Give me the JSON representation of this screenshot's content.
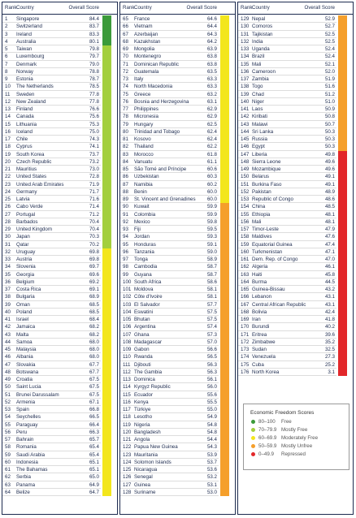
{
  "columns": [
    {
      "header": [
        "Rank",
        "Country",
        "Overall Score"
      ],
      "rows": [
        [
          1,
          "Singapore",
          "84.4"
        ],
        [
          2,
          "Switzerland",
          "83.7"
        ],
        [
          3,
          "Ireland",
          "83.3"
        ],
        [
          4,
          "Australia",
          "80.1"
        ],
        [
          5,
          "Taiwan",
          "79.8"
        ],
        [
          6,
          "Luxembourg",
          "79.7"
        ],
        [
          7,
          "Denmark",
          "79.0"
        ],
        [
          8,
          "Norway",
          "78.8"
        ],
        [
          9,
          "Estonia",
          "78.7"
        ],
        [
          10,
          "The Netherlands",
          "78.5"
        ],
        [
          11,
          "Sweden",
          "77.8"
        ],
        [
          12,
          "New Zealand",
          "77.8"
        ],
        [
          13,
          "Finland",
          "76.6"
        ],
        [
          14,
          "Canada",
          "75.6"
        ],
        [
          15,
          "Lithuania",
          "75.3"
        ],
        [
          16,
          "Iceland",
          "75.0"
        ],
        [
          17,
          "Chile",
          "74.3"
        ],
        [
          18,
          "Cyprus",
          "74.1"
        ],
        [
          19,
          "South Korea",
          "73.7"
        ],
        [
          20,
          "Czech Republic",
          "73.2"
        ],
        [
          21,
          "Mauritius",
          "73.0"
        ],
        [
          22,
          "United States",
          "72.8"
        ],
        [
          23,
          "United Arab Emirates",
          "71.9"
        ],
        [
          24,
          "Germany",
          "71.7"
        ],
        [
          25,
          "Latvia",
          "71.6"
        ],
        [
          26,
          "Cabo Verde",
          "71.4"
        ],
        [
          27,
          "Portugal",
          "71.2"
        ],
        [
          28,
          "Barbados",
          "70.4"
        ],
        [
          29,
          "United Kingdom",
          "70.4"
        ],
        [
          30,
          "Japan",
          "70.3"
        ],
        [
          31,
          "Qatar",
          "70.2"
        ],
        [
          32,
          "Uruguay",
          "69.8"
        ],
        [
          33,
          "Austria",
          "69.8"
        ],
        [
          34,
          "Slovenia",
          "69.7"
        ],
        [
          35,
          "Georgia",
          "69.6"
        ],
        [
          36,
          "Belgium",
          "69.2"
        ],
        [
          37,
          "Costa Rica",
          "69.1"
        ],
        [
          38,
          "Bulgaria",
          "68.9"
        ],
        [
          39,
          "Oman",
          "68.5"
        ],
        [
          40,
          "Poland",
          "68.5"
        ],
        [
          41,
          "Israel",
          "68.4"
        ],
        [
          42,
          "Jamaica",
          "68.2"
        ],
        [
          43,
          "Malta",
          "68.2"
        ],
        [
          44,
          "Samoa",
          "68.0"
        ],
        [
          45,
          "Malaysia",
          "68.0"
        ],
        [
          46,
          "Albania",
          "68.0"
        ],
        [
          47,
          "Slovakia",
          "67.7"
        ],
        [
          48,
          "Botswana",
          "67.7"
        ],
        [
          49,
          "Croatia",
          "67.5"
        ],
        [
          50,
          "Saint Lucia",
          "67.5"
        ],
        [
          51,
          "Brunei Darussalam",
          "67.5"
        ],
        [
          52,
          "Armenia",
          "67.1"
        ],
        [
          53,
          "Spain",
          "66.8"
        ],
        [
          54,
          "Seychelles",
          "66.5"
        ],
        [
          55,
          "Paraguay",
          "66.4"
        ],
        [
          56,
          "Peru",
          "66.3"
        ],
        [
          57,
          "Bahrain",
          "65.7"
        ],
        [
          58,
          "Romania",
          "65.4"
        ],
        [
          59,
          "Saudi Arabia",
          "65.4"
        ],
        [
          60,
          "Indonesia",
          "65.1"
        ],
        [
          61,
          "The Bahamas",
          "65.1"
        ],
        [
          62,
          "Serbia",
          "65.0"
        ],
        [
          63,
          "Panama",
          "64.9"
        ],
        [
          64,
          "Belize",
          "64.7"
        ]
      ]
    },
    {
      "header": [
        "Rank",
        "Country",
        "Overall Score"
      ],
      "rows": [
        [
          65,
          "France",
          "64.6"
        ],
        [
          66,
          "Vietnam",
          "64.4"
        ],
        [
          67,
          "Azerbaijan",
          "64.3"
        ],
        [
          68,
          "Kazakhstan",
          "64.2"
        ],
        [
          69,
          "Mongolia",
          "63.9"
        ],
        [
          70,
          "Montenegro",
          "63.8"
        ],
        [
          71,
          "Dominican Republic",
          "63.8"
        ],
        [
          72,
          "Guatemala",
          "63.5"
        ],
        [
          73,
          "Italy",
          "63.3"
        ],
        [
          74,
          "North Macedonia",
          "63.3"
        ],
        [
          75,
          "Greece",
          "63.2"
        ],
        [
          76,
          "Bosnia and Herzegovina",
          "63.1"
        ],
        [
          77,
          "Philippines",
          "62.9"
        ],
        [
          78,
          "Micronesia",
          "62.9"
        ],
        [
          79,
          "Hungary",
          "62.5"
        ],
        [
          80,
          "Trinidad and Tobago",
          "62.4"
        ],
        [
          81,
          "Kosovo",
          "62.4"
        ],
        [
          82,
          "Thailand",
          "62.2"
        ],
        [
          83,
          "Morocco",
          "61.8"
        ],
        [
          84,
          "Vanuatu",
          "61.1"
        ],
        [
          85,
          "São Tomé and Príncipe",
          "60.6"
        ],
        [
          86,
          "Uzbekistan",
          "60.3"
        ],
        [
          87,
          "Namibia",
          "60.2"
        ],
        [
          88,
          "Benin",
          "60.0"
        ],
        [
          89,
          "St. Vincent and Grenadines",
          "60.0"
        ],
        [
          90,
          "Kuwait",
          "59.9"
        ],
        [
          91,
          "Colombia",
          "59.9"
        ],
        [
          92,
          "Mexico",
          "59.8"
        ],
        [
          93,
          "Fiji",
          "59.5"
        ],
        [
          94,
          "Jordan",
          "59.3"
        ],
        [
          95,
          "Honduras",
          "59.1"
        ],
        [
          96,
          "Tanzania",
          "59.0"
        ],
        [
          97,
          "Tonga",
          "58.9"
        ],
        [
          98,
          "Cambodia",
          "58.7"
        ],
        [
          99,
          "Guyana",
          "58.7"
        ],
        [
          100,
          "South Africa",
          "58.6"
        ],
        [
          101,
          "Moldova",
          "58.1"
        ],
        [
          102,
          "Côte d'Ivoire",
          "58.1"
        ],
        [
          103,
          "El Salvador",
          "57.7"
        ],
        [
          104,
          "Eswatini",
          "57.5"
        ],
        [
          105,
          "Bhutan",
          "57.5"
        ],
        [
          106,
          "Argentina",
          "57.4"
        ],
        [
          107,
          "Ghana",
          "57.3"
        ],
        [
          108,
          "Madagascar",
          "57.0"
        ],
        [
          109,
          "Gabon",
          "56.6"
        ],
        [
          110,
          "Rwanda",
          "56.5"
        ],
        [
          111,
          "Djibouti",
          "56.3"
        ],
        [
          112,
          "The Gambia",
          "56.3"
        ],
        [
          113,
          "Dominica",
          "56.1"
        ],
        [
          114,
          "Kyrgyz Republic",
          "56.0"
        ],
        [
          115,
          "Ecuador",
          "55.6"
        ],
        [
          116,
          "Kenya",
          "55.5"
        ],
        [
          117,
          "Türkiye",
          "55.0"
        ],
        [
          118,
          "Lesotho",
          "54.9"
        ],
        [
          119,
          "Nigeria",
          "54.8"
        ],
        [
          120,
          "Bangladesh",
          "54.8"
        ],
        [
          121,
          "Angola",
          "54.4"
        ],
        [
          122,
          "Papua New Guinea",
          "54.3"
        ],
        [
          123,
          "Mauritania",
          "53.9"
        ],
        [
          124,
          "Solomon Islands",
          "53.7"
        ],
        [
          125,
          "Nicaragua",
          "53.6"
        ],
        [
          126,
          "Senegal",
          "53.2"
        ],
        [
          127,
          "Guinea",
          "53.1"
        ],
        [
          128,
          "Suriname",
          "53.0"
        ]
      ]
    },
    {
      "header": [
        "Rank",
        "Country",
        "Overall Score"
      ],
      "rows": [
        [
          129,
          "Nepal",
          "52.9"
        ],
        [
          130,
          "Comoros",
          "52.7"
        ],
        [
          131,
          "Tajikistan",
          "52.5"
        ],
        [
          132,
          "India",
          "52.5"
        ],
        [
          133,
          "Uganda",
          "52.4"
        ],
        [
          134,
          "Brazil",
          "52.4"
        ],
        [
          135,
          "Mali",
          "52.1"
        ],
        [
          136,
          "Cameroon",
          "52.0"
        ],
        [
          137,
          "Zambia",
          "51.9"
        ],
        [
          138,
          "Togo",
          "51.6"
        ],
        [
          139,
          "Chad",
          "51.2"
        ],
        [
          140,
          "Niger",
          "51.0"
        ],
        [
          141,
          "Laos",
          "50.9"
        ],
        [
          142,
          "Kiribati",
          "50.8"
        ],
        [
          143,
          "Malawi",
          "50.7"
        ],
        [
          144,
          "Sri Lanka",
          "50.3"
        ],
        [
          145,
          "Russia",
          "50.3"
        ],
        [
          146,
          "Egypt",
          "50.3"
        ],
        [
          147,
          "Liberia",
          "49.8"
        ],
        [
          148,
          "Sierra Leone",
          "49.6"
        ],
        [
          149,
          "Mozambique",
          "49.6"
        ],
        [
          150,
          "Belarus",
          "49.1"
        ],
        [
          151,
          "Burkina Faso",
          "49.1"
        ],
        [
          152,
          "Pakistan",
          "48.9"
        ],
        [
          153,
          "Republic of Congo",
          "48.6"
        ],
        [
          154,
          "China",
          "48.5"
        ],
        [
          155,
          "Ethiopia",
          "48.1"
        ],
        [
          156,
          "Mali",
          "48.1"
        ],
        [
          157,
          "Timor-Leste",
          "47.9"
        ],
        [
          158,
          "Maldives",
          "47.6"
        ],
        [
          159,
          "Equatorial Guinea",
          "47.4"
        ],
        [
          160,
          "Turkmenistan",
          "47.1"
        ],
        [
          161,
          "Dem. Rep. of Congo",
          "47.0"
        ],
        [
          162,
          "Algeria",
          "46.1"
        ],
        [
          163,
          "Haiti",
          "45.8"
        ],
        [
          164,
          "Burma",
          "44.5"
        ],
        [
          165,
          "Guinea-Bissau",
          "43.2"
        ],
        [
          166,
          "Lebanon",
          "43.1"
        ],
        [
          167,
          "Central African Republic",
          "43.1"
        ],
        [
          168,
          "Bolivia",
          "42.4"
        ],
        [
          169,
          "Iran",
          "41.8"
        ],
        [
          170,
          "Burundi",
          "40.2"
        ],
        [
          171,
          "Eritrea",
          "39.6"
        ],
        [
          172,
          "Zimbabwe",
          "35.2"
        ],
        [
          173,
          "Sudan",
          "32.5"
        ],
        [
          174,
          "Venezuela",
          "27.3"
        ],
        [
          175,
          "Cuba",
          "25.2"
        ],
        [
          176,
          "North Korea",
          "3.1"
        ]
      ]
    }
  ],
  "legend": {
    "title": "Economic Freedom Scores",
    "items": [
      {
        "range": "80–100",
        "label": "Free",
        "color": "#3b9a3a"
      },
      {
        "range": "70–79.9",
        "label": "Mostly Free",
        "color": "#a3cf3e"
      },
      {
        "range": "60–69.9",
        "label": "Moderately Free",
        "color": "#f3e61c"
      },
      {
        "range": "50–59.9",
        "label": "Mostly Unfree",
        "color": "#f59f2b"
      },
      {
        "range": "0–49.9",
        "label": "Repressed",
        "color": "#e2272a"
      }
    ]
  }
}
